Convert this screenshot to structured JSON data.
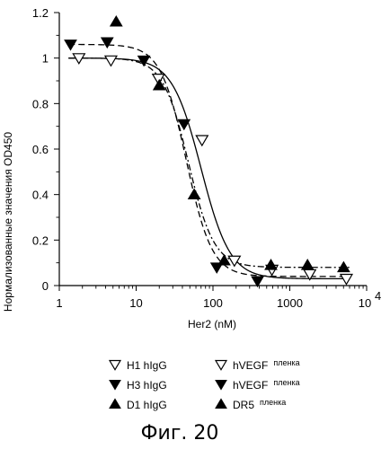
{
  "chart_data": {
    "type": "scatter",
    "xscale": "log",
    "xlim": [
      1,
      10000
    ],
    "ylim": [
      0,
      1.2
    ],
    "xlabel": "Her2 (nM)",
    "ylabel": "Нормализованные значения OD450",
    "xticks": [
      {
        "value": 1,
        "label": "1"
      },
      {
        "value": 10,
        "label": "10"
      },
      {
        "value": 100,
        "label": "100"
      },
      {
        "value": 1000,
        "label": "1000"
      }
    ],
    "xtick_last": {
      "value": 10000,
      "base": "10",
      "exp": "4"
    },
    "yticks": [
      {
        "value": 0,
        "label": "0"
      },
      {
        "value": 0.2,
        "label": "0.2"
      },
      {
        "value": 0.4,
        "label": "0.4"
      },
      {
        "value": 0.6,
        "label": "0.6"
      },
      {
        "value": 0.8,
        "label": "0.8"
      },
      {
        "value": 1,
        "label": "1"
      },
      {
        "value": 1.2,
        "label": "1.2"
      }
    ],
    "grid": false,
    "series": [
      {
        "key": "h1",
        "marker": "triangle-down-open",
        "line": "solid",
        "points": [
          [
            1.8,
            1.0
          ],
          [
            4.7,
            0.99
          ],
          [
            19.5,
            0.91
          ],
          [
            72,
            0.64
          ],
          [
            190,
            0.11
          ],
          [
            585,
            0.07
          ],
          [
            1820,
            0.05
          ],
          [
            5450,
            0.03
          ]
        ],
        "fit": {
          "bottom": 0.03,
          "top": 1.0,
          "ec50": 70,
          "hill": 2.3
        }
      },
      {
        "key": "h3",
        "marker": "triangle-down-filled",
        "line": "dashed",
        "points": [
          [
            1.4,
            1.06
          ],
          [
            4.2,
            1.07
          ],
          [
            12.6,
            0.99
          ],
          [
            42,
            0.71
          ],
          [
            112,
            0.08
          ],
          [
            380,
            0.02
          ]
        ],
        "fit": {
          "bottom": 0.04,
          "top": 1.06,
          "ec50": 45,
          "hill": 2.6
        }
      },
      {
        "key": "d1",
        "marker": "triangle-up-filled",
        "line": "dashdot",
        "points": [
          [
            5.5,
            1.16
          ],
          [
            20,
            0.88
          ],
          [
            57,
            0.4
          ],
          [
            140,
            0.11
          ],
          [
            568,
            0.09
          ],
          [
            1700,
            0.09
          ],
          [
            5020,
            0.08
          ]
        ],
        "fit": {
          "bottom": 0.08,
          "top": 1.0,
          "ec50": 48,
          "hill": 2.6
        }
      }
    ],
    "legend": {
      "placement": "bottom",
      "items": [
        {
          "key": "h1",
          "marker": "triangle-down-open",
          "label": "H1 hIgG",
          "sub": ""
        },
        {
          "key": "vegf1",
          "marker": "triangle-down-open",
          "label": "hVEGF",
          "sub": "пленка"
        },
        {
          "key": "h3",
          "marker": "triangle-down-filled",
          "label": "H3 hIgG",
          "sub": ""
        },
        {
          "key": "vegf2",
          "marker": "triangle-down-filled",
          "label": "hVEGF",
          "sub": "пленка"
        },
        {
          "key": "d1",
          "marker": "triangle-up-filled",
          "label": "D1 hIgG",
          "sub": ""
        },
        {
          "key": "dr5",
          "marker": "triangle-up-filled",
          "label": "DR5",
          "sub": "пленка"
        }
      ]
    }
  },
  "caption": "Фиг. 20"
}
